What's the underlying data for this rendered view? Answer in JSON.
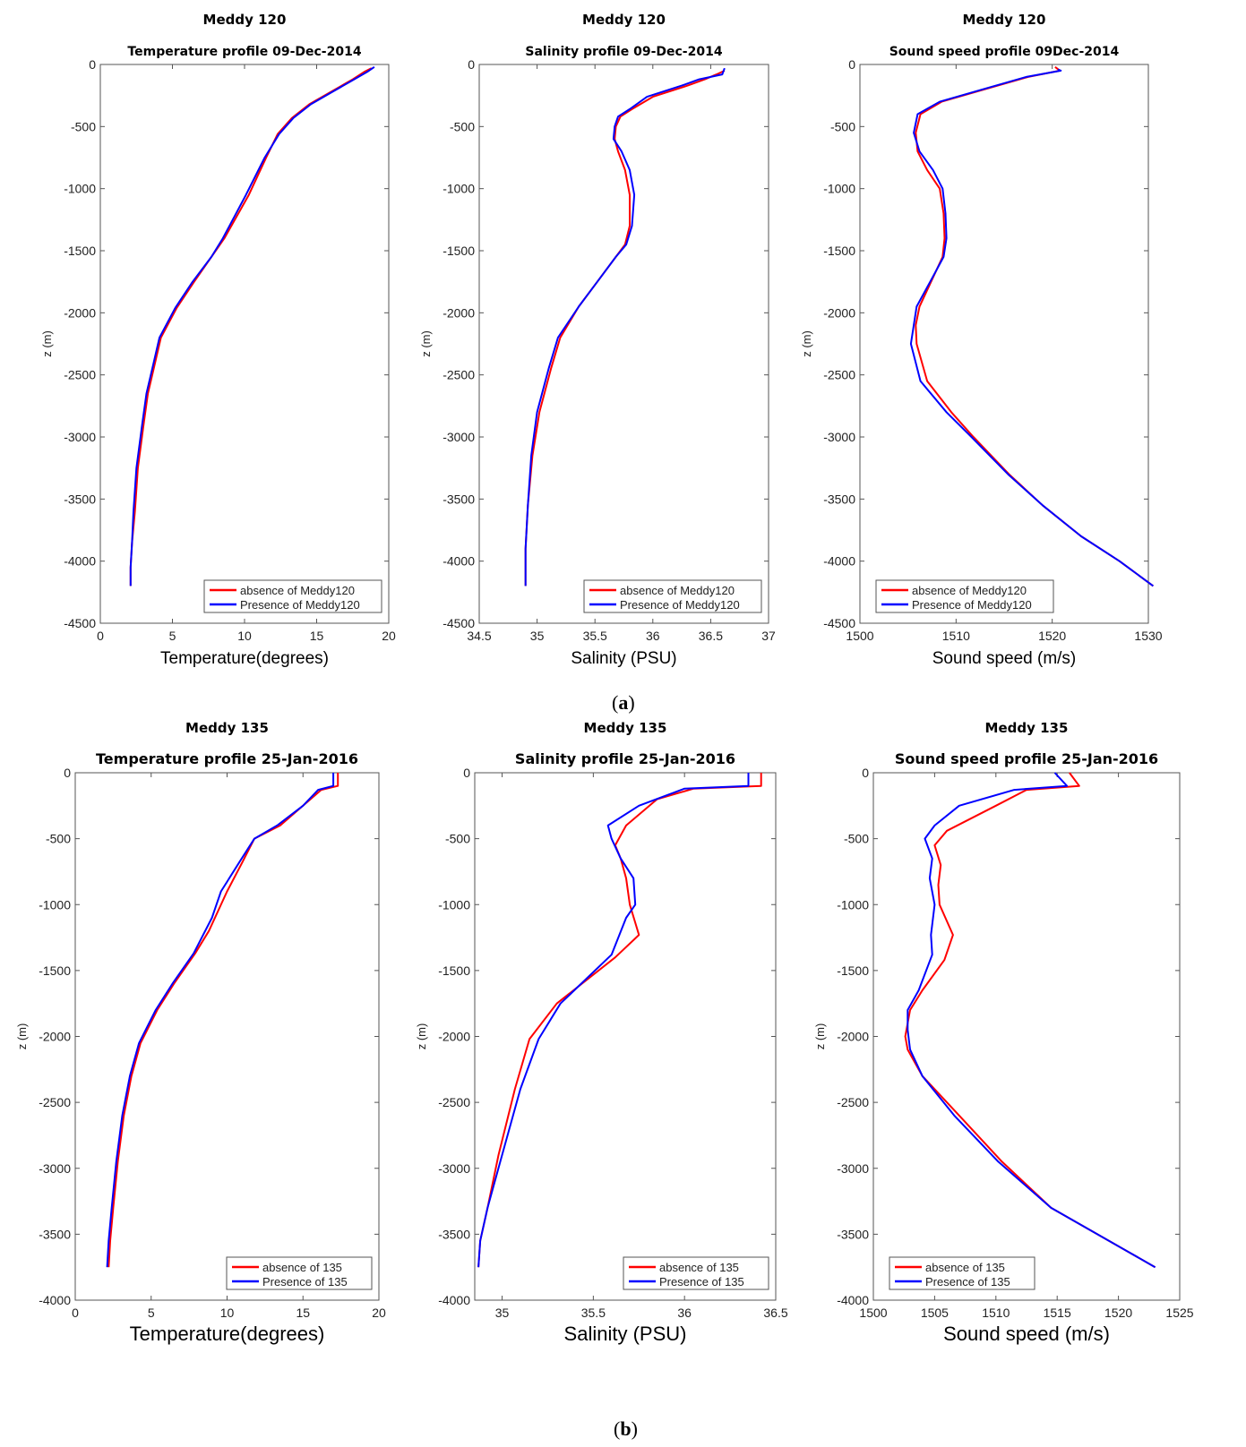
{
  "figure": {
    "panel_a_label": "a",
    "panel_b_label": "b"
  },
  "chart_data": [
    {
      "type": "line",
      "title": "Meddy 120",
      "subtitle": "Temperature profile 09-Dec-2014",
      "xlabel": "Temperature(degrees)",
      "ylabel": "z (m)",
      "xlim": [
        0,
        20
      ],
      "ylim": [
        -4500,
        0
      ],
      "xticks": [
        "0",
        "5",
        "10",
        "15",
        "20"
      ],
      "yticks": [
        "0",
        "-500",
        "-1000",
        "-1500",
        "-2000",
        "-2500",
        "-3000",
        "-3500",
        "-4000",
        "-4500"
      ],
      "legend_position": "bottom-right",
      "series": [
        {
          "name": "absence of Meddy120",
          "color": "#ff0000",
          "x": [
            18.8,
            18.3,
            17.5,
            16,
            14.5,
            13.3,
            12.3,
            11.5,
            10.3,
            8.6,
            7.7,
            6.5,
            5.3,
            4.2,
            3.8,
            3.3,
            3,
            2.6,
            2.4,
            2.2,
            2.1,
            2.1
          ],
          "y": [
            -30,
            -60,
            -120,
            -220,
            -320,
            -430,
            -560,
            -750,
            -1050,
            -1400,
            -1550,
            -1750,
            -1960,
            -2200,
            -2400,
            -2650,
            -2900,
            -3250,
            -3600,
            -3850,
            -4050,
            -4200
          ]
        },
        {
          "name": "Presence of Meddy120",
          "color": "#0000ff",
          "x": [
            19,
            18.5,
            17.6,
            16.1,
            14.6,
            13.4,
            12.4,
            11.4,
            10.1,
            8.5,
            7.7,
            6.4,
            5.2,
            4.1,
            3.7,
            3.2,
            2.9,
            2.5,
            2.3,
            2.2,
            2.1,
            2.1
          ],
          "y": [
            -20,
            -60,
            -120,
            -220,
            -320,
            -430,
            -560,
            -750,
            -1050,
            -1400,
            -1550,
            -1750,
            -1960,
            -2200,
            -2400,
            -2650,
            -2900,
            -3250,
            -3600,
            -3850,
            -4050,
            -4200
          ]
        }
      ]
    },
    {
      "type": "line",
      "title": "Meddy 120",
      "subtitle": "Salinity profile 09-Dec-2014",
      "xlabel": "Salinity (PSU)",
      "ylabel": "z (m)",
      "xlim": [
        34.5,
        37
      ],
      "ylim": [
        -4500,
        0
      ],
      "xticks": [
        "34.5",
        "35",
        "35.5",
        "36",
        "36.5",
        "37"
      ],
      "yticks": [
        "0",
        "-500",
        "-1000",
        "-1500",
        "-2000",
        "-2500",
        "-3000",
        "-3500",
        "-4000",
        "-4500"
      ],
      "legend_position": "bottom-right",
      "series": [
        {
          "name": "absence of Meddy120",
          "color": "#ff0000",
          "x": [
            36.62,
            36.55,
            36.45,
            36.3,
            36.0,
            35.82,
            35.72,
            35.68,
            35.67,
            35.7,
            35.76,
            35.8,
            35.8,
            35.76,
            35.68,
            35.52,
            35.36,
            35.2,
            35.12,
            35.02,
            34.96,
            34.92,
            34.9,
            34.9
          ],
          "y": [
            -50,
            -80,
            -120,
            -170,
            -260,
            -360,
            -420,
            -500,
            -600,
            -700,
            -850,
            -1050,
            -1300,
            -1450,
            -1550,
            -1750,
            -1950,
            -2200,
            -2450,
            -2800,
            -3150,
            -3550,
            -3900,
            -4200
          ]
        },
        {
          "name": "Presence of Meddy120",
          "color": "#0000ff",
          "x": [
            36.62,
            36.6,
            36.4,
            36.25,
            35.95,
            35.8,
            35.7,
            35.67,
            35.66,
            35.73,
            35.8,
            35.84,
            35.82,
            35.77,
            35.68,
            35.52,
            35.36,
            35.18,
            35.1,
            35.0,
            34.95,
            34.92,
            34.9,
            34.9
          ],
          "y": [
            -30,
            -80,
            -120,
            -170,
            -260,
            -360,
            -420,
            -500,
            -600,
            -700,
            -850,
            -1050,
            -1300,
            -1450,
            -1550,
            -1750,
            -1950,
            -2200,
            -2450,
            -2800,
            -3150,
            -3550,
            -3900,
            -4200
          ]
        }
      ]
    },
    {
      "type": "line",
      "title": "Meddy 120",
      "subtitle": "Sound speed profile 09Dec-2014",
      "xlabel": "Sound speed (m/s)",
      "ylabel": "z (m)",
      "xlim": [
        1500,
        1530
      ],
      "ylim": [
        -4500,
        0
      ],
      "xticks": [
        "1500",
        "1510",
        "1520",
        "1530"
      ],
      "yticks": [
        "0",
        "-500",
        "-1000",
        "-1500",
        "-2000",
        "-2500",
        "-3000",
        "-3500",
        "-4000",
        "-4500"
      ],
      "legend_position": "bottom-left",
      "series": [
        {
          "name": "absence of Meddy120",
          "color": "#ff0000",
          "x": [
            1520.3,
            1520.8,
            1517.5,
            1513,
            1508.5,
            1506.3,
            1505.8,
            1506,
            1507,
            1508.3,
            1508.7,
            1508.8,
            1508.6,
            1507.4,
            1506.2,
            1505.8,
            1505.9,
            1507,
            1509.5,
            1511.8,
            1515.5,
            1519,
            1523,
            1527,
            1530.5
          ],
          "y": [
            -20,
            -50,
            -100,
            -200,
            -300,
            -400,
            -550,
            -700,
            -850,
            -1000,
            -1200,
            -1400,
            -1550,
            -1750,
            -1950,
            -2100,
            -2250,
            -2550,
            -2800,
            -3000,
            -3300,
            -3550,
            -3800,
            -4000,
            -4200
          ]
        },
        {
          "name": "Presence of Meddy120",
          "color": "#0000ff",
          "x": [
            1520.6,
            1520.9,
            1517.3,
            1512.8,
            1508.3,
            1506.0,
            1505.6,
            1506.2,
            1507.6,
            1508.6,
            1508.9,
            1509.0,
            1508.7,
            1507.3,
            1505.9,
            1505.6,
            1505.3,
            1506.3,
            1509.0,
            1511.6,
            1515.4,
            1519,
            1523,
            1527,
            1530.5
          ],
          "y": [
            -40,
            -50,
            -100,
            -200,
            -300,
            -400,
            -550,
            -700,
            -850,
            -1000,
            -1200,
            -1400,
            -1550,
            -1750,
            -1950,
            -2100,
            -2250,
            -2550,
            -2800,
            -3000,
            -3300,
            -3550,
            -3800,
            -4000,
            -4200
          ]
        }
      ]
    },
    {
      "type": "line",
      "title": "Meddy 135",
      "subtitle": "Temperature profile 25-Jan-2016",
      "xlabel": "Temperature(degrees)",
      "ylabel": "z (m)",
      "xlim": [
        0,
        20
      ],
      "ylim": [
        -4000,
        0
      ],
      "xticks": [
        "0",
        "5",
        "10",
        "15",
        "20"
      ],
      "yticks": [
        "0",
        "-500",
        "-1000",
        "-1500",
        "-2000",
        "-2500",
        "-3000",
        "-3500",
        "-4000"
      ],
      "legend_position": "bottom-right",
      "series": [
        {
          "name": "absence of 135",
          "color": "#ff0000",
          "x": [
            17.3,
            17.3,
            16.2,
            15,
            13.5,
            11.8,
            11,
            10,
            8.8,
            7.9,
            6.5,
            5.4,
            4.3,
            3.7,
            3.2,
            2.8,
            2.5,
            2.3,
            2.2
          ],
          "y": [
            0,
            -100,
            -130,
            -250,
            -400,
            -500,
            -680,
            -900,
            -1200,
            -1370,
            -1600,
            -1800,
            -2050,
            -2300,
            -2600,
            -2950,
            -3300,
            -3550,
            -3750
          ]
        },
        {
          "name": "Presence of 135",
          "color": "#0000ff",
          "x": [
            17.0,
            17.0,
            16.0,
            15,
            13.3,
            11.8,
            10.8,
            9.6,
            9.0,
            7.8,
            6.4,
            5.3,
            4.2,
            3.6,
            3.1,
            2.7,
            2.4,
            2.2,
            2.1
          ],
          "y": [
            0,
            -100,
            -130,
            -250,
            -400,
            -500,
            -680,
            -900,
            -1100,
            -1370,
            -1600,
            -1800,
            -2050,
            -2300,
            -2600,
            -2950,
            -3300,
            -3550,
            -3750
          ]
        }
      ]
    },
    {
      "type": "line",
      "title": "Meddy 135",
      "subtitle": "Salinity profile 25-Jan-2016",
      "xlabel": "Salinity (PSU)",
      "ylabel": "z (m)",
      "xlim": [
        34.85,
        36.5
      ],
      "ylim": [
        -4000,
        0
      ],
      "xticks": [
        "35",
        "35.5",
        "36",
        "36.5"
      ],
      "yticks": [
        "0",
        "-500",
        "-1000",
        "-1500",
        "-2000",
        "-2500",
        "-3000",
        "-3500",
        "-4000"
      ],
      "legend_position": "bottom-right",
      "series": [
        {
          "name": "absence of 135",
          "color": "#ff0000",
          "x": [
            36.42,
            36.42,
            36.05,
            35.85,
            35.68,
            35.62,
            35.65,
            35.68,
            35.7,
            35.75,
            35.62,
            35.3,
            35.15,
            35.07,
            34.98,
            34.92,
            34.88,
            34.87
          ],
          "y": [
            0,
            -100,
            -120,
            -200,
            -400,
            -550,
            -650,
            -800,
            -1000,
            -1230,
            -1400,
            -1750,
            -2020,
            -2400,
            -2900,
            -3300,
            -3550,
            -3750
          ]
        },
        {
          "name": "Presence of 135",
          "color": "#0000ff",
          "x": [
            36.35,
            36.35,
            36.0,
            35.75,
            35.58,
            35.6,
            35.65,
            35.72,
            35.73,
            35.68,
            35.6,
            35.32,
            35.2,
            35.1,
            35.0,
            34.92,
            34.88,
            34.87
          ],
          "y": [
            0,
            -100,
            -120,
            -250,
            -400,
            -500,
            -650,
            -800,
            -1000,
            -1100,
            -1380,
            -1750,
            -2020,
            -2400,
            -2900,
            -3300,
            -3550,
            -3750
          ]
        }
      ]
    },
    {
      "type": "line",
      "title": "Meddy 135",
      "subtitle": "Sound speed profile 25-Jan-2016",
      "xlabel": "Sound speed (m/s)",
      "ylabel": "z (m)",
      "xlim": [
        1500,
        1525
      ],
      "ylim": [
        -4000,
        0
      ],
      "xticks": [
        "1500",
        "1505",
        "1510",
        "1515",
        "1520",
        "1525"
      ],
      "yticks": [
        "0",
        "-500",
        "-1000",
        "-1500",
        "-2000",
        "-2500",
        "-3000",
        "-3500",
        "-4000"
      ],
      "legend_position": "bottom-left",
      "series": [
        {
          "name": "absence of 135",
          "color": "#ff0000",
          "x": [
            1516,
            1516.8,
            1512.5,
            1510,
            1506,
            1505,
            1505.5,
            1505.3,
            1505.4,
            1506.5,
            1505.8,
            1504,
            1503,
            1502.6,
            1502.8,
            1504.0,
            1507,
            1510.5,
            1514.5,
            1523
          ],
          "y": [
            0,
            -100,
            -130,
            -250,
            -440,
            -550,
            -700,
            -850,
            -1000,
            -1230,
            -1420,
            -1650,
            -1800,
            -2000,
            -2100,
            -2300,
            -2600,
            -2950,
            -3300,
            -3750
          ]
        },
        {
          "name": "Presence of 135",
          "color": "#0000ff",
          "x": [
            1514.8,
            1515.8,
            1511.5,
            1507,
            1505,
            1504.2,
            1504.8,
            1504.6,
            1505,
            1504.7,
            1504.8,
            1503.7,
            1502.8,
            1502.8,
            1503.0,
            1504.0,
            1506.6,
            1510.2,
            1514.5,
            1523
          ],
          "y": [
            0,
            -100,
            -130,
            -250,
            -400,
            -500,
            -650,
            -800,
            -1000,
            -1230,
            -1380,
            -1650,
            -1800,
            -1950,
            -2100,
            -2300,
            -2600,
            -2950,
            -3300,
            -3750
          ]
        }
      ]
    }
  ]
}
